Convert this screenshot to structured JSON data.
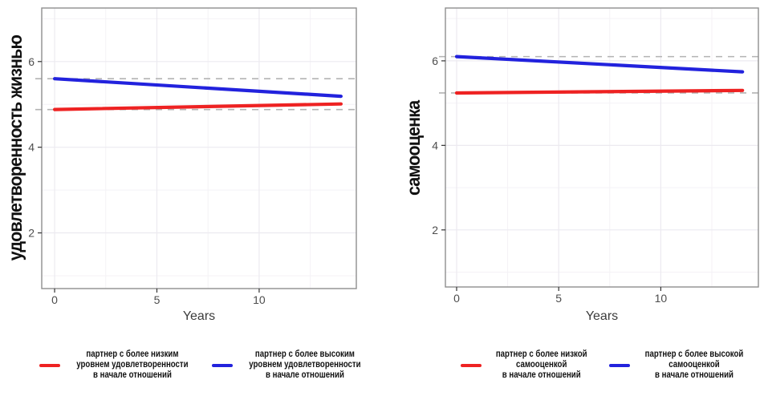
{
  "figure": {
    "background": "#ffffff",
    "grid_major_color": "#eceaf0",
    "grid_minor_color": "#f4f2f6",
    "panel_border_color": "#8f8f8f",
    "tick_label_color": "#4d4d4d",
    "axis_title_color": "#3c3c3c",
    "reference_line_color": "#b3b3b3"
  },
  "chart_data": [
    {
      "type": "line",
      "title": "",
      "xlabel": "Years",
      "ylabel": "удовлетворенность жизнью",
      "xlim": [
        -0.63,
        14.75
      ],
      "ylim": [
        0.7,
        7.25
      ],
      "x_ticks": [
        "0",
        "5",
        "10"
      ],
      "x_tick_values": [
        0,
        5,
        10
      ],
      "y_ticks": [
        "2",
        "4",
        "6"
      ],
      "y_tick_values": [
        2,
        4,
        6
      ],
      "x_minor_ticks": [
        2.5,
        7.5,
        12.5
      ],
      "y_minor_ticks": [
        1,
        3,
        5,
        7
      ],
      "grid": true,
      "legend_position": "bottom",
      "series": [
        {
          "name": "партнер с более низким\nуровнем удовлетворенности\nв начале отношений",
          "color": "#ee2222",
          "x": [
            0,
            14
          ],
          "y": [
            4.88,
            5.01
          ]
        },
        {
          "name": "партнер с более высоким\nуровнем удовлетворенности\nв начале отношений",
          "color": "#2222dd",
          "x": [
            0,
            14
          ],
          "y": [
            5.6,
            5.19
          ]
        }
      ],
      "reference_lines": [
        {
          "y": 5.6,
          "style": "dashed"
        },
        {
          "y": 4.88,
          "style": "dashed"
        }
      ]
    },
    {
      "type": "line",
      "title": "",
      "xlabel": "Years",
      "ylabel": "самооценка",
      "xlim": [
        -0.55,
        14.78
      ],
      "ylim": [
        0.65,
        7.25
      ],
      "x_ticks": [
        "0",
        "5",
        "10"
      ],
      "x_tick_values": [
        0,
        5,
        10
      ],
      "y_ticks": [
        "2",
        "4",
        "6"
      ],
      "y_tick_values": [
        2,
        4,
        6
      ],
      "x_minor_ticks": [
        2.5,
        7.5,
        12.5
      ],
      "y_minor_ticks": [
        1,
        3,
        5,
        7
      ],
      "grid": true,
      "legend_position": "bottom",
      "series": [
        {
          "name": "партнер с более низкой\nсамооценкой\nв начале отношений",
          "color": "#ee2222",
          "x": [
            0,
            14
          ],
          "y": [
            5.24,
            5.3
          ]
        },
        {
          "name": "партнер с более высокой\nсамооценкой\nв начале отношений",
          "color": "#2222dd",
          "x": [
            0,
            14
          ],
          "y": [
            6.1,
            5.74
          ]
        }
      ],
      "reference_lines": [
        {
          "y": 6.1,
          "style": "dashed"
        },
        {
          "y": 5.24,
          "style": "dashed"
        }
      ]
    }
  ]
}
